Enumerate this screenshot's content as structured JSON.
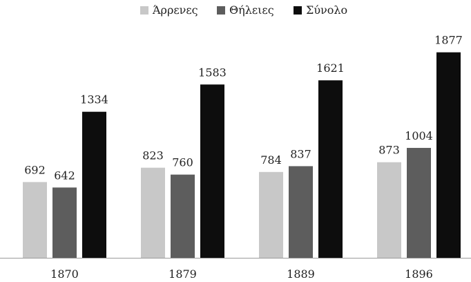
{
  "chart_data": {
    "type": "bar",
    "title": "",
    "xlabel": "",
    "ylabel": "",
    "categories": [
      "1870",
      "1879",
      "1889",
      "1896"
    ],
    "series": [
      {
        "name": "Άρρενες",
        "values": [
          692,
          823,
          784,
          873
        ],
        "color": "#c8c8c8"
      },
      {
        "name": "Θήλειες",
        "values": [
          642,
          760,
          837,
          1004
        ],
        "color": "#5d5d5d"
      },
      {
        "name": "Σύνολο",
        "values": [
          1334,
          1583,
          1621,
          1877
        ],
        "color": "#0d0d0d"
      }
    ],
    "ylim": [
      0,
      2000
    ],
    "grid": false,
    "legend_position": "top-center",
    "data_labels": true
  }
}
